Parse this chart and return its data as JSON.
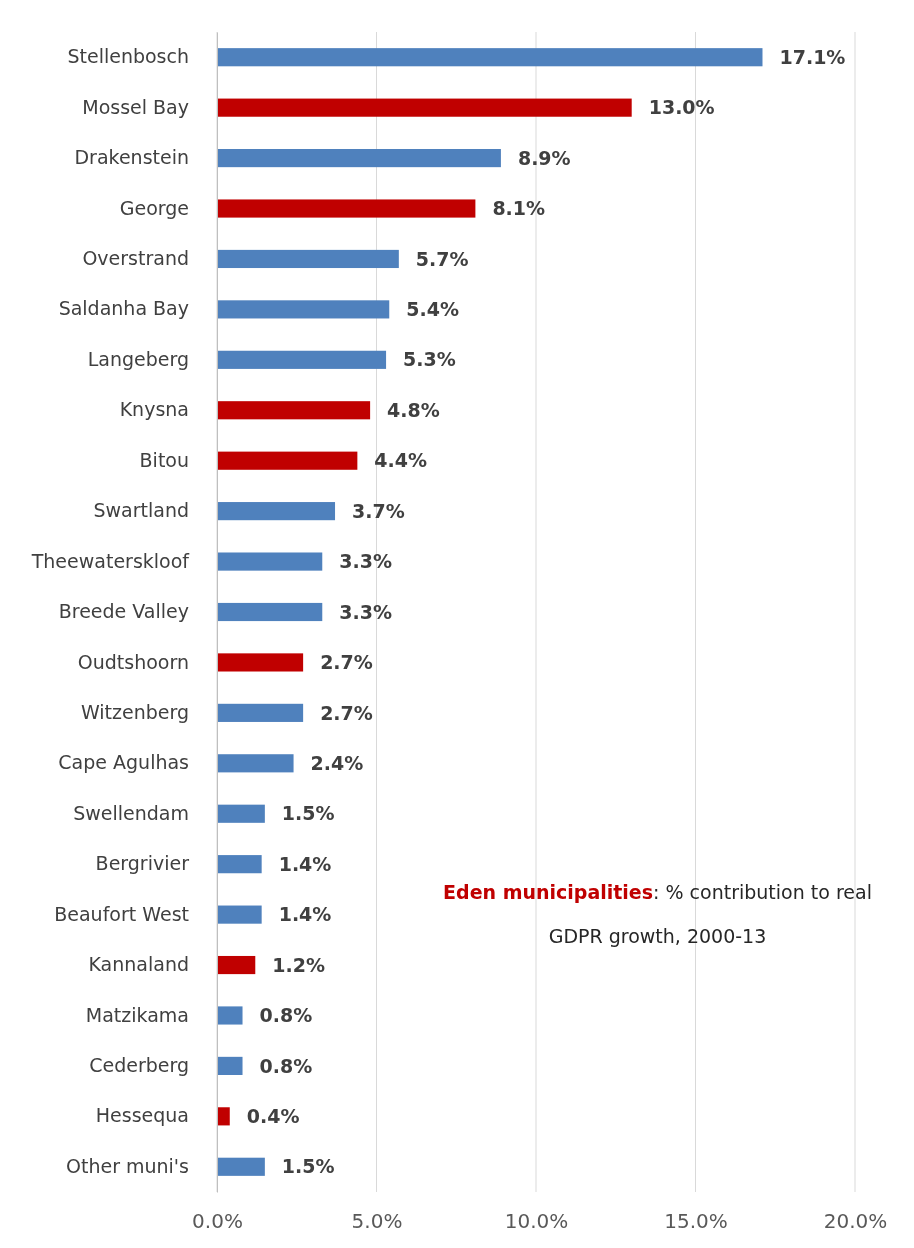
{
  "chart_data": {
    "type": "bar",
    "orientation": "horizontal",
    "categories": [
      "Stellenbosch",
      "Mossel Bay",
      "Drakenstein",
      "George",
      "Overstrand",
      "Saldanha Bay",
      "Langeberg",
      "Knysna",
      "Bitou",
      "Swartland",
      "Theewaterskloof",
      "Breede Valley",
      "Oudtshoorn",
      "Witzenberg",
      "Cape Agulhas",
      "Swellendam",
      "Bergrivier",
      "Beaufort West",
      "Kannaland",
      "Matzikama",
      "Cederberg",
      "Hessequa",
      "Other muni's"
    ],
    "values": [
      17.1,
      13.0,
      8.9,
      8.1,
      5.7,
      5.4,
      5.3,
      4.8,
      4.4,
      3.7,
      3.3,
      3.3,
      2.7,
      2.7,
      2.4,
      1.5,
      1.4,
      1.4,
      1.2,
      0.8,
      0.8,
      0.4,
      1.5
    ],
    "value_labels": [
      "17.1%",
      "13.0%",
      "8.9%",
      "8.1%",
      "5.7%",
      "5.4%",
      "5.3%",
      "4.8%",
      "4.4%",
      "3.7%",
      "3.3%",
      "3.3%",
      "2.7%",
      "2.7%",
      "2.4%",
      "1.5%",
      "1.4%",
      "1.4%",
      "1.2%",
      "0.8%",
      "0.8%",
      "0.4%",
      "1.5%"
    ],
    "colors": [
      "#4f81bd",
      "#c00000",
      "#4f81bd",
      "#c00000",
      "#4f81bd",
      "#4f81bd",
      "#4f81bd",
      "#c00000",
      "#c00000",
      "#4f81bd",
      "#4f81bd",
      "#4f81bd",
      "#c00000",
      "#4f81bd",
      "#4f81bd",
      "#4f81bd",
      "#4f81bd",
      "#4f81bd",
      "#c00000",
      "#4f81bd",
      "#4f81bd",
      "#c00000",
      "#4f81bd"
    ],
    "xlim": [
      0,
      20
    ],
    "xticks": [
      {
        "value": 0,
        "label": "0.0%"
      },
      {
        "value": 5,
        "label": "5.0%"
      },
      {
        "value": 10,
        "label": "10.0%"
      },
      {
        "value": 15,
        "label": "15.0%"
      },
      {
        "value": 20,
        "label": "20.0%"
      }
    ],
    "grid": "x",
    "annotations": [
      "Eden municipalities",
      ": % contribution to real GDPR growth, 2000-13"
    ]
  }
}
